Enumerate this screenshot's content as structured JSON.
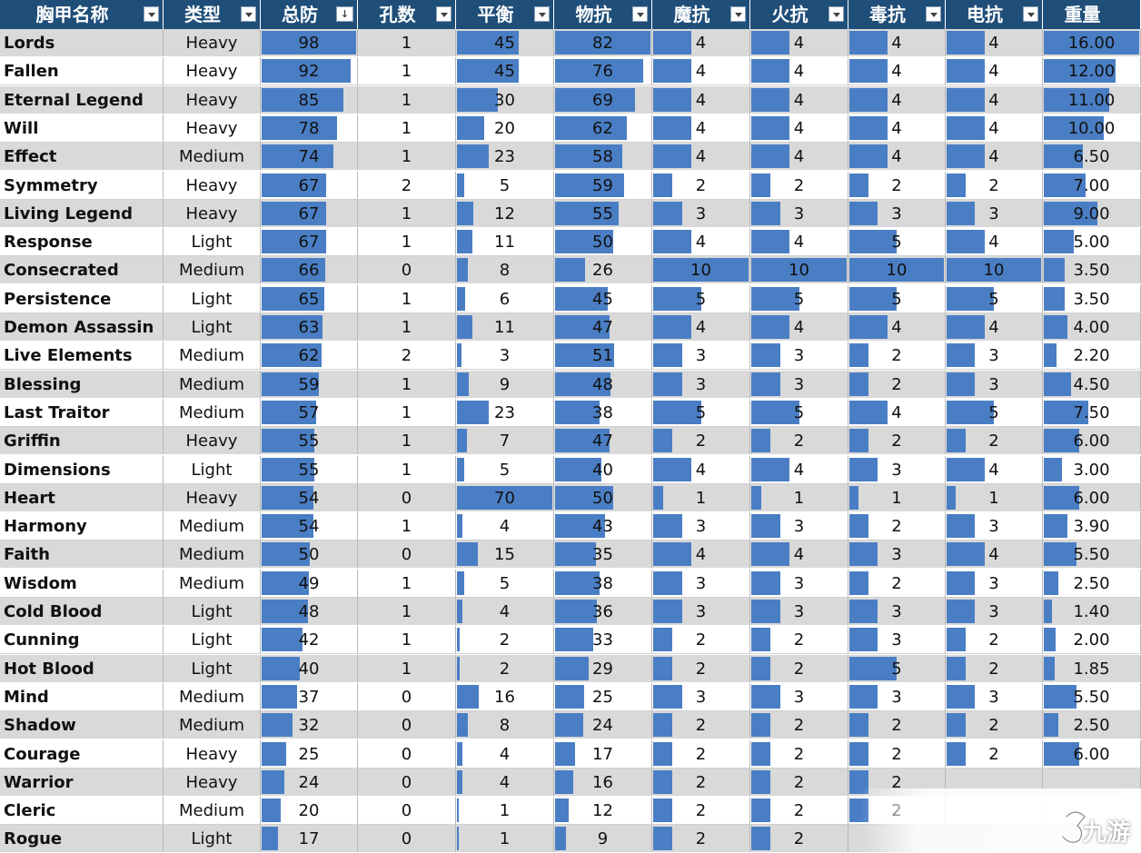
{
  "columns": [
    {
      "label": "胸甲名称",
      "control": "filter"
    },
    {
      "label": "类型",
      "control": "filter"
    },
    {
      "label": "总防",
      "control": "sort-desc"
    },
    {
      "label": "孔数",
      "control": "filter"
    },
    {
      "label": "平衡",
      "control": "filter"
    },
    {
      "label": "物抗",
      "control": "filter"
    },
    {
      "label": "魔抗",
      "control": "filter"
    },
    {
      "label": "火抗",
      "control": "filter"
    },
    {
      "label": "毒抗",
      "control": "filter"
    },
    {
      "label": "电抗",
      "control": "filter"
    },
    {
      "label": "重量",
      "control": "none"
    }
  ],
  "sort_indicator": "↓",
  "bar_maxima": [
    null,
    null,
    98,
    null,
    70,
    82,
    10,
    10,
    10,
    10,
    16
  ],
  "bar_color": "#4a7ec4",
  "header_color": "#1f4e79",
  "rows": [
    [
      "Lords",
      "Heavy",
      "98",
      "1",
      "45",
      "82",
      "4",
      "4",
      "4",
      "4",
      "16.00"
    ],
    [
      "Fallen",
      "Heavy",
      "92",
      "1",
      "45",
      "76",
      "4",
      "4",
      "4",
      "4",
      "12.00"
    ],
    [
      "Eternal Legend",
      "Heavy",
      "85",
      "1",
      "30",
      "69",
      "4",
      "4",
      "4",
      "4",
      "11.00"
    ],
    [
      "Will",
      "Heavy",
      "78",
      "1",
      "20",
      "62",
      "4",
      "4",
      "4",
      "4",
      "10.00"
    ],
    [
      "Effect",
      "Medium",
      "74",
      "1",
      "23",
      "58",
      "4",
      "4",
      "4",
      "4",
      "6.50"
    ],
    [
      "Symmetry",
      "Heavy",
      "67",
      "2",
      "5",
      "59",
      "2",
      "2",
      "2",
      "2",
      "7.00"
    ],
    [
      "Living Legend",
      "Heavy",
      "67",
      "1",
      "12",
      "55",
      "3",
      "3",
      "3",
      "3",
      "9.00"
    ],
    [
      "Response",
      "Light",
      "67",
      "1",
      "11",
      "50",
      "4",
      "4",
      "5",
      "4",
      "5.00"
    ],
    [
      "Consecrated",
      "Medium",
      "66",
      "0",
      "8",
      "26",
      "10",
      "10",
      "10",
      "10",
      "3.50"
    ],
    [
      "Persistence",
      "Light",
      "65",
      "1",
      "6",
      "45",
      "5",
      "5",
      "5",
      "5",
      "3.50"
    ],
    [
      "Demon Assassin",
      "Light",
      "63",
      "1",
      "11",
      "47",
      "4",
      "4",
      "4",
      "4",
      "4.00"
    ],
    [
      "Live Elements",
      "Medium",
      "62",
      "2",
      "3",
      "51",
      "3",
      "3",
      "2",
      "3",
      "2.20"
    ],
    [
      "Blessing",
      "Medium",
      "59",
      "1",
      "9",
      "48",
      "3",
      "3",
      "2",
      "3",
      "4.50"
    ],
    [
      "Last Traitor",
      "Medium",
      "57",
      "1",
      "23",
      "38",
      "5",
      "5",
      "4",
      "5",
      "7.50"
    ],
    [
      "Griffin",
      "Heavy",
      "55",
      "1",
      "7",
      "47",
      "2",
      "2",
      "2",
      "2",
      "6.00"
    ],
    [
      "Dimensions",
      "Light",
      "55",
      "1",
      "5",
      "40",
      "4",
      "4",
      "3",
      "4",
      "3.00"
    ],
    [
      "Heart",
      "Heavy",
      "54",
      "0",
      "70",
      "50",
      "1",
      "1",
      "1",
      "1",
      "6.00"
    ],
    [
      "Harmony",
      "Medium",
      "54",
      "1",
      "4",
      "43",
      "3",
      "3",
      "2",
      "3",
      "3.90"
    ],
    [
      "Faith",
      "Medium",
      "50",
      "0",
      "15",
      "35",
      "4",
      "4",
      "3",
      "4",
      "5.50"
    ],
    [
      "Wisdom",
      "Medium",
      "49",
      "1",
      "5",
      "38",
      "3",
      "3",
      "2",
      "3",
      "2.50"
    ],
    [
      "Cold Blood",
      "Light",
      "48",
      "1",
      "4",
      "36",
      "3",
      "3",
      "3",
      "3",
      "1.40"
    ],
    [
      "Cunning",
      "Light",
      "42",
      "1",
      "2",
      "33",
      "2",
      "2",
      "3",
      "2",
      "2.00"
    ],
    [
      "Hot Blood",
      "Light",
      "40",
      "1",
      "2",
      "29",
      "2",
      "2",
      "5",
      "2",
      "1.85"
    ],
    [
      "Mind",
      "Medium",
      "37",
      "0",
      "16",
      "25",
      "3",
      "3",
      "3",
      "3",
      "5.50"
    ],
    [
      "Shadow",
      "Medium",
      "32",
      "0",
      "8",
      "24",
      "2",
      "2",
      "2",
      "2",
      "2.50"
    ],
    [
      "Courage",
      "Heavy",
      "25",
      "0",
      "4",
      "17",
      "2",
      "2",
      "2",
      "2",
      "6.00"
    ],
    [
      "Warrior",
      "Heavy",
      "24",
      "0",
      "4",
      "16",
      "2",
      "2",
      "2",
      "",
      ""
    ],
    [
      "Cleric",
      "Medium",
      "20",
      "0",
      "1",
      "12",
      "2",
      "2",
      "2",
      "",
      ""
    ],
    [
      "Rogue",
      "Light",
      "17",
      "0",
      "1",
      "9",
      "2",
      "2",
      "",
      "",
      ""
    ]
  ],
  "watermark": {
    "glyph_icon": "nine-game-logo-icon",
    "text": "九游"
  }
}
